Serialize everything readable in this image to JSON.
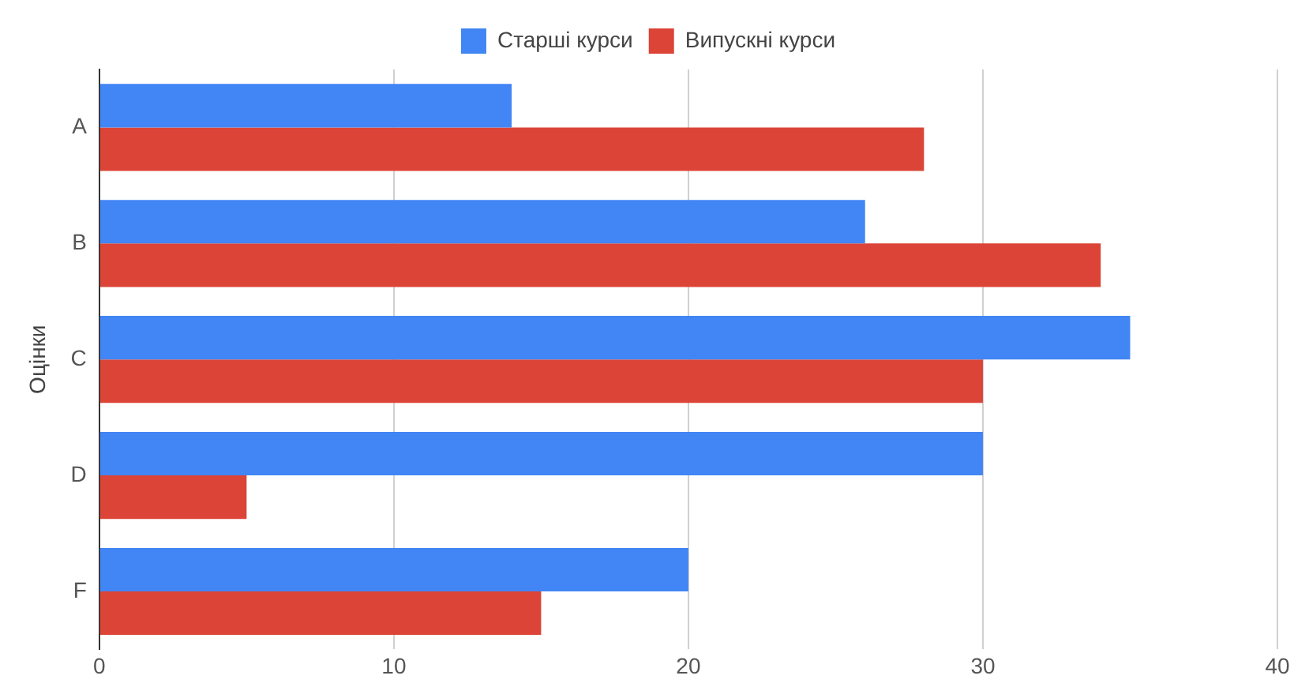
{
  "chart_data": {
    "type": "bar",
    "orientation": "horizontal",
    "ylabel": "Оцінки",
    "categories": [
      "A",
      "B",
      "C",
      "D",
      "F"
    ],
    "series": [
      {
        "name": "Старші курси",
        "color": "#4285f4",
        "values": [
          14,
          26,
          35,
          30,
          20
        ]
      },
      {
        "name": "Випускні курси",
        "color": "#db4437",
        "values": [
          28,
          34,
          30,
          5,
          15
        ]
      }
    ],
    "xlim": [
      0,
      40
    ],
    "xticks": [
      0,
      10,
      20,
      30,
      40
    ],
    "grid": "x",
    "legend": "top"
  }
}
